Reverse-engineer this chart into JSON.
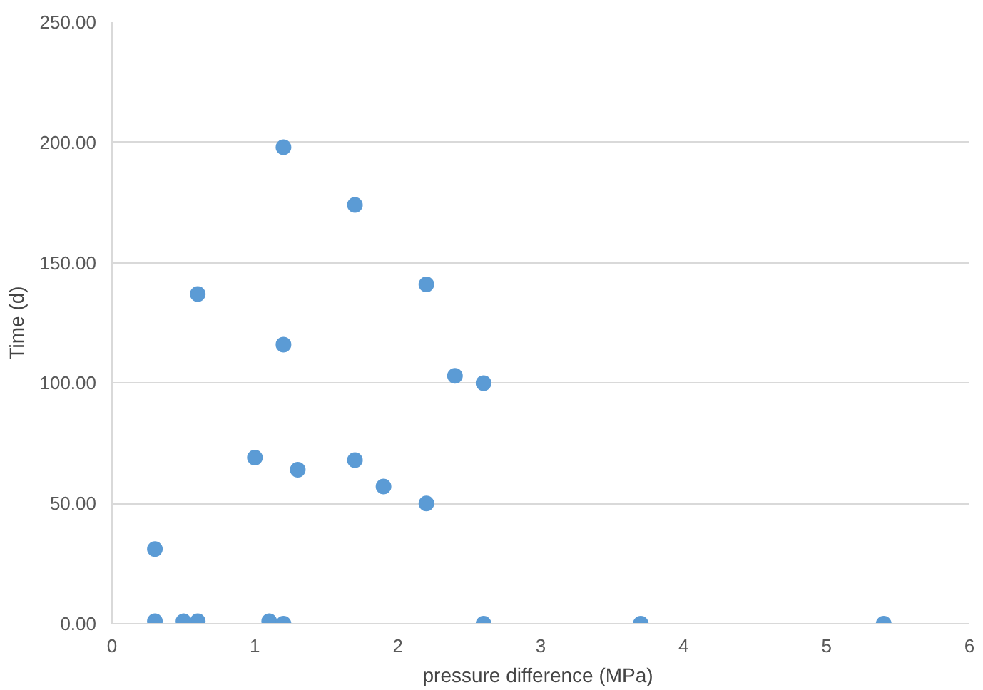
{
  "chart_data": {
    "type": "scatter",
    "xlabel": "pressure difference  (MPa)",
    "ylabel": "Time (d)",
    "x": [
      1.2,
      1.7,
      2.2,
      0.6,
      1.2,
      2.4,
      2.6,
      1.0,
      1.3,
      1.7,
      1.9,
      2.2,
      0.3,
      0.3,
      0.5,
      0.6,
      1.1,
      1.2,
      2.6,
      3.7,
      5.4
    ],
    "series": [
      {
        "color": "#5b9bd5",
        "values": [
          198,
          174,
          141,
          137,
          116,
          103,
          100,
          69,
          64,
          68,
          57,
          50,
          31,
          1,
          1,
          1,
          1,
          0,
          0,
          0,
          0
        ]
      }
    ],
    "xlim": [
      0,
      6
    ],
    "xticks": [
      0,
      1,
      2,
      3,
      4,
      5,
      6
    ],
    "ylim": [
      0,
      250
    ],
    "yticks": [
      {
        "value": 0,
        "label": "0.00"
      },
      {
        "value": 50,
        "label": "50.00"
      },
      {
        "value": 100,
        "label": "100.00"
      },
      {
        "value": 150,
        "label": "150.00"
      },
      {
        "value": 200,
        "label": "200.00"
      },
      {
        "value": 250,
        "label": "250.00"
      }
    ],
    "grid": "y",
    "marker": "circle"
  }
}
